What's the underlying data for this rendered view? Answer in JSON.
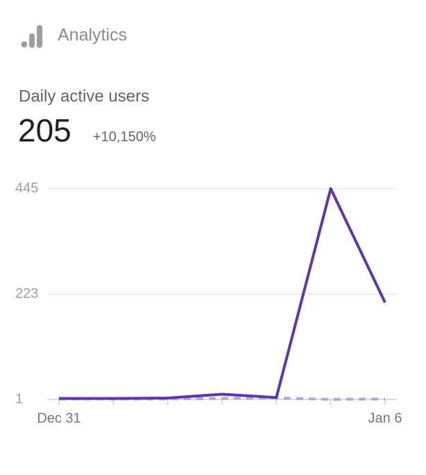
{
  "header": {
    "title": "Analytics"
  },
  "metric": {
    "label": "Daily active users",
    "value": "205",
    "change": "+10,150%"
  },
  "chart_data": {
    "type": "line",
    "categories": [
      "Dec 31",
      null,
      null,
      null,
      null,
      null,
      "Jan 6"
    ],
    "series": [
      {
        "color": "#5e35b1",
        "style": "solid",
        "values": [
          3,
          3,
          4,
          12,
          5,
          445,
          205
        ]
      },
      {
        "color": "#b3a4e0",
        "style": "dashed",
        "values": [
          2,
          2,
          2,
          3,
          4,
          1,
          2
        ]
      }
    ],
    "ylim": [
      1,
      445
    ],
    "yticks": [
      1,
      223,
      445
    ],
    "grid": true
  }
}
